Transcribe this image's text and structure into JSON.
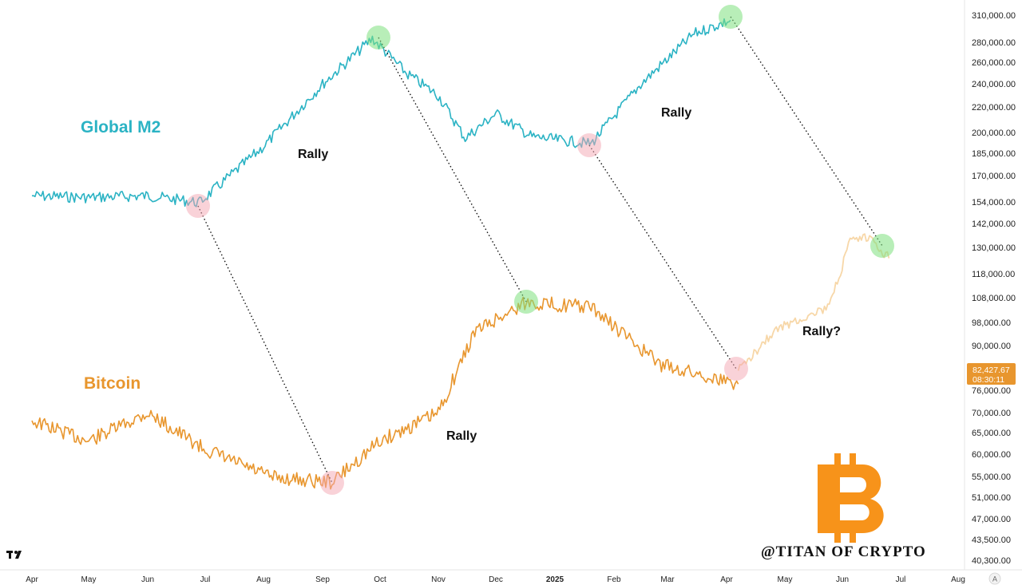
{
  "chart_data": {
    "type": "line",
    "title": "",
    "x_ticks": [
      "Apr",
      "May",
      "Jun",
      "Jul",
      "Aug",
      "Sep",
      "Oct",
      "Nov",
      "Dec",
      "2025",
      "Feb",
      "Mar",
      "Apr",
      "May",
      "Jun",
      "Jul",
      "Aug"
    ],
    "y_ticks": [
      "310,000.00",
      "280,000.00",
      "260,000.00",
      "240,000.00",
      "220,000.00",
      "200,000.00",
      "185,000.00",
      "170,000.00",
      "154,000.00",
      "142,000.00",
      "130,000.00",
      "118,000.00",
      "108,000.00",
      "98,000.00",
      "90,000.00",
      "76,000.00",
      "70,000.00",
      "65,000.00",
      "60,000.00",
      "55,000.00",
      "51,000.00",
      "47,000.00",
      "43,500.00",
      "40,300.00"
    ],
    "y_scale": "log",
    "current_price": {
      "value": "82,427.67",
      "countdown": "08:30:11"
    },
    "series": [
      {
        "name": "Global M2",
        "color": "#2bb3c4",
        "x": [
          "2024-04-01",
          "2024-05-01",
          "2024-06-01",
          "2024-06-28",
          "2024-08-01",
          "2024-09-01",
          "2024-09-27",
          "2024-10-15",
          "2024-11-01",
          "2024-11-15",
          "2024-12-01",
          "2024-12-20",
          "2025-01-20",
          "2025-02-15",
          "2025-03-15",
          "2025-04-03"
        ],
        "values": [
          158000,
          157000,
          158000,
          154000,
          190000,
          240000,
          285000,
          250000,
          230000,
          196000,
          215000,
          197000,
          192000,
          240000,
          290000,
          305000
        ]
      },
      {
        "name": "Bitcoin",
        "color": "#e8962e",
        "x": [
          "2024-04-01",
          "2024-05-01",
          "2024-06-01",
          "2024-07-01",
          "2024-08-05",
          "2024-09-06",
          "2024-10-01",
          "2024-11-01",
          "2024-11-20",
          "2024-12-17",
          "2025-01-20",
          "2025-02-25",
          "2025-04-07"
        ],
        "values": [
          68000,
          63000,
          70000,
          61000,
          55000,
          54000,
          63000,
          70000,
          95000,
          106000,
          104000,
          84000,
          78000
        ]
      },
      {
        "name": "",
        "color": "#f7d7a8",
        "x": [
          "2025-04-07",
          "2025-04-25",
          "2025-05-10",
          "2025-05-25",
          "2025-06-05",
          "2025-06-15",
          "2025-06-25"
        ],
        "values": [
          82000,
          95000,
          100000,
          104000,
          133000,
          135000,
          125000
        ]
      }
    ],
    "markers": [
      {
        "color": "pink",
        "x": "2024-06-28",
        "series": "Global M2"
      },
      {
        "color": "green",
        "x": "2024-09-27",
        "series": "Global M2"
      },
      {
        "color": "pink",
        "x": "2025-01-20",
        "series": "Global M2"
      },
      {
        "color": "green",
        "x": "2025-04-03",
        "series": "Global M2"
      },
      {
        "color": "pink",
        "x": "2024-09-06",
        "series": "Bitcoin"
      },
      {
        "color": "green",
        "x": "2024-12-17",
        "series": "Bitcoin"
      },
      {
        "color": "pink",
        "x": "2025-04-07",
        "series": "Bitcoin"
      },
      {
        "color": "green",
        "x": "2025-06-25",
        "series": "Bitcoin"
      }
    ],
    "annotations": [
      "Rally",
      "Rally",
      "Rally",
      "Rally?"
    ],
    "series_labels": {
      "m2": "Global M2",
      "btc": "Bitcoin"
    },
    "watermark": "@TITAN OF CRYPTO",
    "axis_mode_button": "A",
    "colors": {
      "m2": "#2bb3c4",
      "btc": "#e8962e",
      "projection": "#f7d7a8",
      "bitcoin_logo": "#f7931a",
      "price_tag": "#e8962e"
    }
  }
}
